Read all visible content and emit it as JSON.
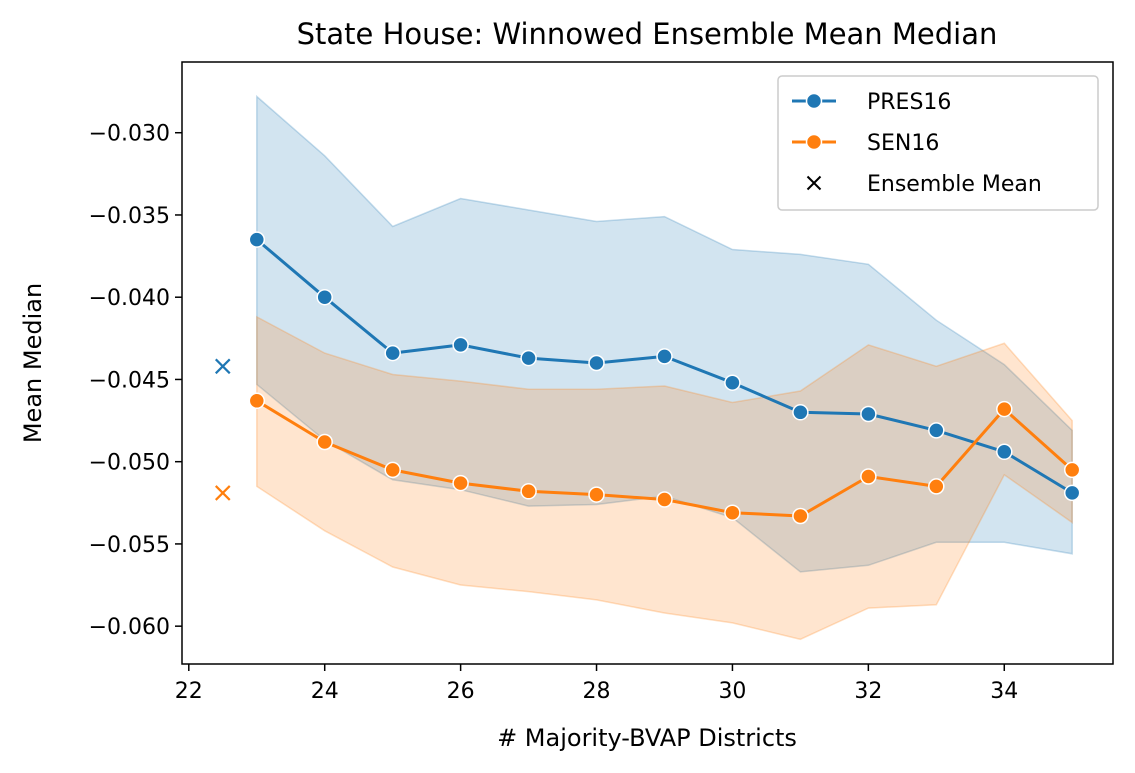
{
  "chart_data": {
    "type": "line",
    "title": "State House: Winnowed Ensemble Mean Median",
    "xlabel": "# Majority-BVAP Districts",
    "ylabel": "Mean Median",
    "xlim": [
      21.9,
      35.6
    ],
    "ylim": [
      -0.0623,
      -0.0257
    ],
    "xticks": [
      22,
      24,
      26,
      28,
      30,
      32,
      34
    ],
    "xtick_labels": [
      "22",
      "24",
      "26",
      "28",
      "30",
      "32",
      "34"
    ],
    "yticks": [
      -0.03,
      -0.035,
      -0.04,
      -0.045,
      -0.05,
      -0.055,
      -0.06
    ],
    "ytick_labels": [
      "−0.030",
      "−0.035",
      "−0.040",
      "−0.045",
      "−0.050",
      "−0.055",
      "−0.060"
    ],
    "grid": false,
    "legend_position": "top-right",
    "x": [
      23,
      24,
      25,
      26,
      27,
      28,
      29,
      30,
      31,
      32,
      33,
      34,
      35
    ],
    "series": [
      {
        "name": "PRES16",
        "color": "#1f77b4",
        "values": [
          -0.0365,
          -0.04,
          -0.0434,
          -0.0429,
          -0.0437,
          -0.044,
          -0.0436,
          -0.0452,
          -0.047,
          -0.0471,
          -0.0481,
          -0.0494,
          -0.0519
        ],
        "band_upper": [
          -0.0278,
          -0.0314,
          -0.0357,
          -0.034,
          -0.0347,
          -0.0354,
          -0.0351,
          -0.0371,
          -0.0374,
          -0.038,
          -0.0414,
          -0.0441,
          -0.0481
        ],
        "band_lower": [
          -0.0453,
          -0.0487,
          -0.0511,
          -0.0517,
          -0.0527,
          -0.0526,
          -0.0521,
          -0.0534,
          -0.0567,
          -0.0563,
          -0.0549,
          -0.0549,
          -0.0556
        ],
        "ensemble_mean": -0.0442
      },
      {
        "name": "SEN16",
        "color": "#ff7f0e",
        "values": [
          -0.0463,
          -0.0488,
          -0.0505,
          -0.0513,
          -0.0518,
          -0.052,
          -0.0523,
          -0.0531,
          -0.0533,
          -0.0509,
          -0.0515,
          -0.0468,
          -0.0505
        ],
        "band_upper": [
          -0.0412,
          -0.0434,
          -0.0447,
          -0.0451,
          -0.0456,
          -0.0456,
          -0.0454,
          -0.0464,
          -0.0457,
          -0.0429,
          -0.0442,
          -0.0428,
          -0.0475
        ],
        "band_lower": [
          -0.0515,
          -0.0542,
          -0.0564,
          -0.0575,
          -0.0579,
          -0.0584,
          -0.0592,
          -0.0598,
          -0.0608,
          -0.0589,
          -0.0587,
          -0.0508,
          -0.0537
        ],
        "ensemble_mean": -0.0519
      }
    ],
    "ensemble_mean_x": 22.5,
    "legend": [
      {
        "label": "PRES16",
        "marker": "line-circle",
        "color": "#1f77b4"
      },
      {
        "label": "SEN16",
        "marker": "line-circle",
        "color": "#ff7f0e"
      },
      {
        "label": "Ensemble Mean",
        "marker": "x",
        "color": "#000000"
      }
    ]
  }
}
